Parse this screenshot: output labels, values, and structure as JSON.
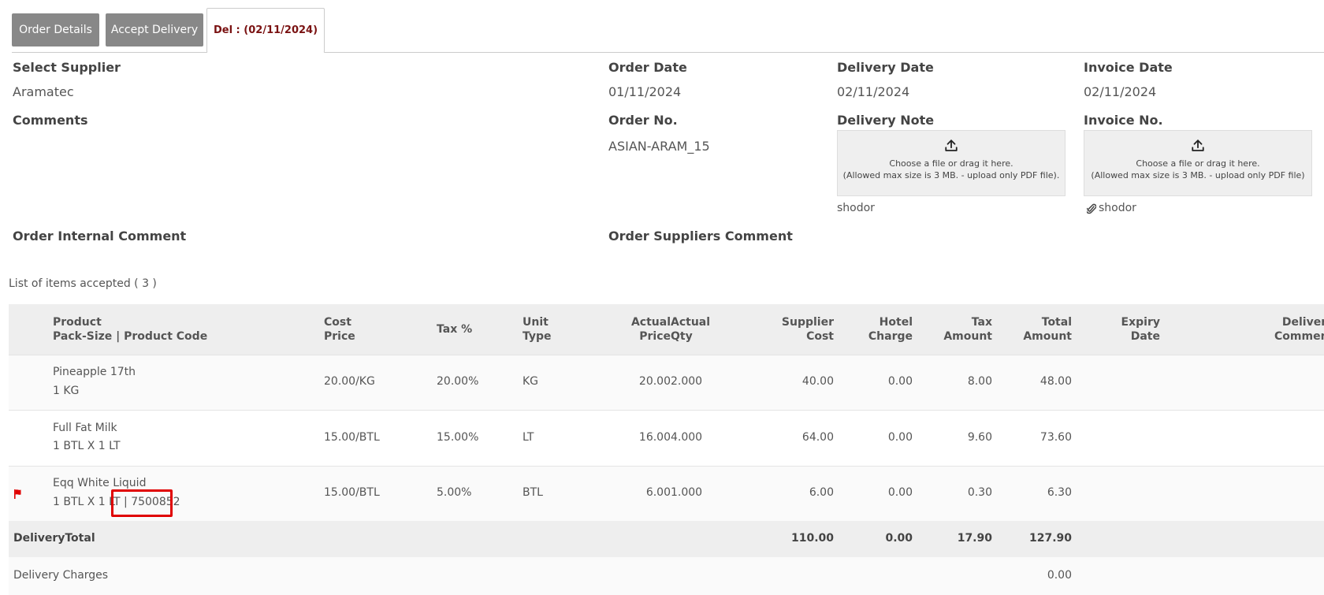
{
  "tabs": [
    "Order Details",
    "Accept Delivery",
    "Del : (02/11/2024)"
  ],
  "header": {
    "supplier_label": "Select Supplier",
    "supplier_value": "Aramatec",
    "order_date_label": "Order Date",
    "order_date_value": "01/11/2024",
    "delivery_date_label": "Delivery Date",
    "delivery_date_value": "02/11/2024",
    "invoice_date_label": "Invoice Date",
    "invoice_date_value": "02/11/2024",
    "comments_label": "Comments",
    "order_no_label": "Order No.",
    "order_no_value": "ASIAN-ARAM_15",
    "delivery_note_label": "Delivery Note",
    "invoice_no_label": "Invoice No.",
    "upload_line1": "Choose a file or drag it here.",
    "delivery_upload_line2": "(Allowed max size is 3 MB. - upload only PDF file).",
    "invoice_upload_line2": "(Allowed max size is 3 MB. - upload only PDF file)",
    "delivery_note_file": "shodor",
    "invoice_file": "shodor",
    "internal_comment_label": "Order Internal Comment",
    "suppliers_comment_label": "Order Suppliers Comment"
  },
  "list_title": "List of items accepted ( 3 )",
  "table": {
    "headers": {
      "product_1": "Product",
      "product_2": "Pack-Size | Product Code",
      "cost_1": "Cost",
      "cost_2": "Price",
      "tax": "Tax %",
      "unit_1": "Unit",
      "unit_2": "Type",
      "actual_price_1": "Actual",
      "actual_price_2": "Price",
      "actual_qty_1": "Actual",
      "actual_qty_2": "Qty",
      "supplier_1": "Supplier",
      "supplier_2": "Cost",
      "hotel_1": "Hotel",
      "hotel_2": "Charge",
      "tax_amt_1": "Tax",
      "tax_amt_2": "Amount",
      "total_1": "Total",
      "total_2": "Amount",
      "expiry_1": "Expiry",
      "expiry_2": "Date",
      "delivery_1": "Delivery",
      "delivery_2": "Comment"
    },
    "rows": [
      {
        "name": "Pineapple 17th",
        "pack": "1 KG",
        "cost": "20.00/KG",
        "tax": "20.00%",
        "unit": "KG",
        "actual_price": "20.00",
        "actual_qty": "2.000",
        "supplier_cost": "40.00",
        "hotel_charge": "0.00",
        "tax_amount": "8.00",
        "total": "48.00"
      },
      {
        "name": "Full Fat Milk",
        "pack": "1 BTL X 1 LT",
        "cost": "15.00/BTL",
        "tax": "15.00%",
        "unit": "LT",
        "actual_price": "16.00",
        "actual_qty": "4.000",
        "supplier_cost": "64.00",
        "hotel_charge": "0.00",
        "tax_amount": "9.60",
        "total": "73.60"
      },
      {
        "name": "Eqq White Liquid",
        "pack": "1 BTL X 1 LT | 7500852",
        "cost": "15.00/BTL",
        "tax": "5.00%",
        "unit": "BTL",
        "actual_price": "6.00",
        "actual_qty": "1.000",
        "supplier_cost": "6.00",
        "hotel_charge": "0.00",
        "tax_amount": "0.30",
        "total": "6.30"
      }
    ],
    "totals": {
      "label": "DeliveryTotal",
      "supplier_cost": "110.00",
      "hotel_charge": "0.00",
      "tax_amount": "17.90",
      "total": "127.90"
    },
    "charges": {
      "label": "Delivery Charges",
      "total": "0.00"
    }
  },
  "colors": {
    "active_tab_text": "#7a1212",
    "flag": "#e00000",
    "highlight": "#e00000",
    "tab_bg": "#888888"
  }
}
